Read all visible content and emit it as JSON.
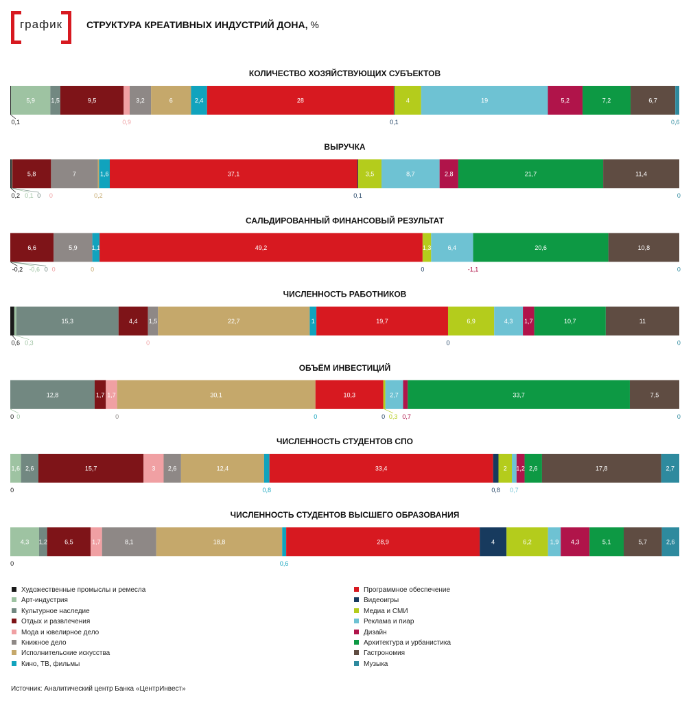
{
  "logo_text": "график",
  "title": "СТРУКТУРА КРЕАТИВНЫХ ИНДУСТРИЙ ДОНА,",
  "title_unit": "%",
  "categories": [
    {
      "name": "Художественные промыслы и ремесла",
      "color": "#1a1a1a"
    },
    {
      "name": "Арт-индустрия",
      "color": "#9ec3a2"
    },
    {
      "name": "Культурное наследие",
      "color": "#728881"
    },
    {
      "name": "Отдых и развлечения",
      "color": "#7e1418"
    },
    {
      "name": "Мода и ювелирное дело",
      "color": "#f0a0a3"
    },
    {
      "name": "Книжное дело",
      "color": "#8e8886"
    },
    {
      "name": "Исполнительские искусства",
      "color": "#c5a86b"
    },
    {
      "name": "Кино, ТВ, фильмы",
      "color": "#11a3bd"
    },
    {
      "name": "Программное обеспечение",
      "color": "#d71920"
    },
    {
      "name": "Видеоигры",
      "color": "#173a5e"
    },
    {
      "name": "Медиа и СМИ",
      "color": "#b4cc1c"
    },
    {
      "name": "Реклама и пиар",
      "color": "#6ec2d3"
    },
    {
      "name": "Дизайн",
      "color": "#b0144a"
    },
    {
      "name": "Архитектура и урбанистика",
      "color": "#0d9944"
    },
    {
      "name": "Гастрономия",
      "color": "#5f4c42"
    },
    {
      "name": "Музыка",
      "color": "#2e8a9e"
    }
  ],
  "chart_data": {
    "type": "bar",
    "orientation": "horizontal-stacked-100",
    "unit": "%",
    "bars": [
      {
        "title": "КОЛИЧЕСТВО ХОЗЯЙСТВУЮЩИХ СУБЪЕКТОВ",
        "values": [
          0.1,
          5.9,
          1.5,
          9.5,
          0.9,
          3.2,
          6,
          2.4,
          28,
          0.1,
          4,
          19,
          5.2,
          7.2,
          6.7,
          0.6
        ],
        "inside_labels": [
          "",
          "5,9",
          "1,5",
          "9,5",
          "",
          "3,2",
          "6",
          "2,4",
          "28",
          "",
          "4",
          "19",
          "5,2",
          "7,2",
          "6,7",
          ""
        ],
        "below_labels": [
          {
            "cat": 0,
            "text": "0,1"
          },
          {
            "cat": 4,
            "text": "0,9"
          },
          {
            "cat": 9,
            "text": "0,1"
          },
          {
            "cat": 15,
            "text": "0,6"
          }
        ]
      },
      {
        "title": "ВЫРУЧКА",
        "values": [
          0.2,
          0.1,
          0,
          5.8,
          0,
          7,
          0.2,
          1.6,
          37.1,
          0.1,
          3.5,
          8.7,
          2.8,
          21.7,
          11.4,
          0
        ],
        "inside_labels": [
          "",
          "",
          "",
          "5,8",
          "",
          "7",
          "",
          "1,6",
          "37,1",
          "",
          "3,5",
          "8,7",
          "2,8",
          "21,7",
          "11,4",
          ""
        ],
        "below_labels": [
          {
            "cat": 0,
            "text": "0,2"
          },
          {
            "cat": 1,
            "text": "0,1"
          },
          {
            "cat": 2,
            "text": "0"
          },
          {
            "cat": 4,
            "text": "0"
          },
          {
            "cat": 6,
            "text": "0,2"
          },
          {
            "cat": 9,
            "text": "0,1"
          },
          {
            "cat": 15,
            "text": "0"
          }
        ]
      },
      {
        "title": "САЛЬДИРОВАННЫЙ ФИНАНСОВЫЙ РЕЗУЛЬТАТ",
        "values": [
          -0.2,
          -0.6,
          0,
          6.6,
          0,
          5.9,
          0,
          1.1,
          49.2,
          0,
          1.3,
          6.4,
          -1.1,
          20.6,
          10.8,
          0
        ],
        "inside_labels": [
          "",
          "",
          "",
          "6,6",
          "",
          "5,9",
          "",
          "1,1",
          "49,2",
          "",
          "1,3",
          "6,4",
          "",
          "20,6",
          "10,8",
          ""
        ],
        "below_labels": [
          {
            "cat": 0,
            "text": "-0,2"
          },
          {
            "cat": 1,
            "text": "-0,6"
          },
          {
            "cat": 2,
            "text": "0"
          },
          {
            "cat": 4,
            "text": "0"
          },
          {
            "cat": 6,
            "text": "0"
          },
          {
            "cat": 9,
            "text": "0"
          },
          {
            "cat": 12,
            "text": "-1,1"
          },
          {
            "cat": 15,
            "text": "0"
          }
        ]
      },
      {
        "title": "ЧИСЛЕННОСТЬ РАБОТНИКОВ",
        "values": [
          0.6,
          0.3,
          15.3,
          4.4,
          0,
          1.5,
          22.7,
          1,
          19.7,
          0,
          6.9,
          4.3,
          1.7,
          10.7,
          11,
          0
        ],
        "inside_labels": [
          "",
          "",
          "15,3",
          "4,4",
          "",
          "1,5",
          "22,7",
          "1",
          "19,7",
          "",
          "6,9",
          "4,3",
          "1,7",
          "10,7",
          "11",
          ""
        ],
        "below_labels": [
          {
            "cat": 0,
            "text": "0,6"
          },
          {
            "cat": 1,
            "text": "0,3"
          },
          {
            "cat": 4,
            "text": "0"
          },
          {
            "cat": 9,
            "text": "0"
          },
          {
            "cat": 15,
            "text": "0"
          }
        ]
      },
      {
        "title": "ОБЪЁМ ИНВЕСТИЦИЙ",
        "values": [
          0,
          0,
          12.8,
          1.7,
          1.7,
          0,
          30.1,
          0,
          10.3,
          0,
          0.3,
          2.7,
          0.7,
          33.7,
          7.5,
          0
        ],
        "inside_labels": [
          "",
          "",
          "12,8",
          "1,7",
          "1,7",
          "",
          "30,1",
          "",
          "10,3",
          "",
          "",
          "2,7",
          "",
          "33,7",
          "7,5",
          ""
        ],
        "below_labels": [
          {
            "cat": 0,
            "text": "0"
          },
          {
            "cat": 1,
            "text": "0"
          },
          {
            "cat": 5,
            "text": "0"
          },
          {
            "cat": 7,
            "text": "0"
          },
          {
            "cat": 9,
            "text": "0"
          },
          {
            "cat": 10,
            "text": "0,3"
          },
          {
            "cat": 12,
            "text": "0,7"
          },
          {
            "cat": 15,
            "text": "0"
          }
        ]
      },
      {
        "title": "ЧИСЛЕННОСТЬ СТУДЕНТОВ СПО",
        "values": [
          0,
          1.6,
          2.6,
          15.7,
          3,
          2.6,
          12.4,
          0.8,
          33.4,
          0.8,
          2,
          0.7,
          1.2,
          2.6,
          17.8,
          2.7
        ],
        "inside_labels": [
          "",
          "1,6",
          "2,6",
          "15,7",
          "3",
          "2,6",
          "12,4",
          "",
          "33,4",
          "",
          "2",
          "",
          "1,2",
          "2,6",
          "17,8",
          "2,7"
        ],
        "below_labels": [
          {
            "cat": 0,
            "text": "0"
          },
          {
            "cat": 7,
            "text": "0,8"
          },
          {
            "cat": 9,
            "text": "0,8"
          },
          {
            "cat": 11,
            "text": "0,7"
          }
        ]
      },
      {
        "title": "ЧИСЛЕННОСТЬ СТУДЕНТОВ ВЫСШЕГО ОБРАЗОВАНИЯ",
        "values": [
          0,
          4.3,
          1.2,
          6.5,
          1.7,
          8.1,
          18.8,
          0.6,
          28.9,
          4,
          6.2,
          1.9,
          4.3,
          5.1,
          5.7,
          2.6
        ],
        "inside_labels": [
          "",
          "4,3",
          "1,2",
          "6,5",
          "1,7",
          "8,1",
          "18,8",
          "",
          "28,9",
          "4",
          "6,2",
          "1,9",
          "4,3",
          "5,1",
          "5,7",
          "2,6"
        ],
        "below_labels": [
          {
            "cat": 0,
            "text": "0"
          },
          {
            "cat": 7,
            "text": "0,6"
          }
        ]
      }
    ]
  },
  "source": "Источник: Аналитический центр Банка «ЦентрИнвест»"
}
